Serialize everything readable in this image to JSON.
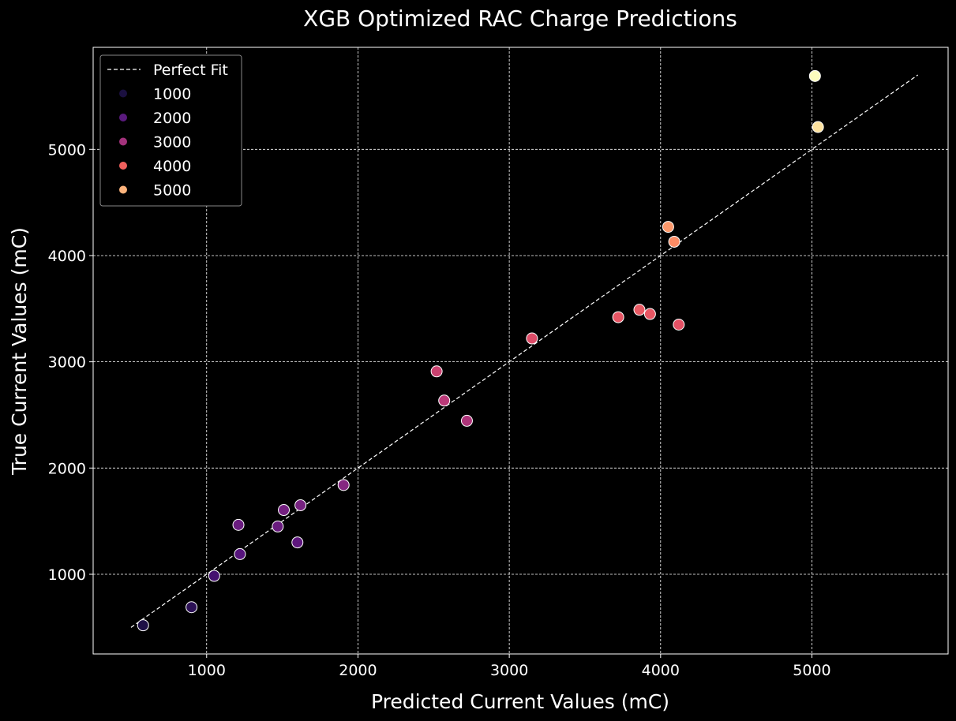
{
  "chart_data": {
    "type": "scatter",
    "title": "XGB Optimized RAC Charge Predictions",
    "xlabel": "Predicted Current Values (mC)",
    "ylabel": "True Current Values (mC)",
    "xlim": [
      250,
      5900
    ],
    "ylim": [
      250,
      5960
    ],
    "x_ticks": [
      1000,
      2000,
      3000,
      4000,
      5000
    ],
    "y_ticks": [
      1000,
      2000,
      3000,
      4000,
      5000
    ],
    "x_tick_labels": [
      "1000",
      "2000",
      "3000",
      "4000",
      "5000"
    ],
    "y_tick_labels": [
      "1000",
      "2000",
      "3000",
      "4000",
      "5000"
    ],
    "grid": true,
    "background": "#000000",
    "reference_line": {
      "name": "Perfect Fit",
      "from": [
        500,
        500
      ],
      "to": [
        5700,
        5700
      ],
      "style": "dashed",
      "color": "#ffffff"
    },
    "legend": {
      "position": "top-left",
      "entries": [
        {
          "label": "Perfect Fit",
          "kind": "line"
        },
        {
          "label": "1000",
          "kind": "marker",
          "color": "#1b1040"
        },
        {
          "label": "2000",
          "kind": "marker",
          "color": "#5a1a7d"
        },
        {
          "label": "3000",
          "kind": "marker",
          "color": "#a3327c"
        },
        {
          "label": "4000",
          "kind": "marker",
          "color": "#f0605d"
        },
        {
          "label": "5000",
          "kind": "marker",
          "color": "#fdb37c"
        }
      ]
    },
    "hue_range": [
      500,
      5700
    ],
    "points": [
      {
        "x": 580,
        "y": 520,
        "hue": 520
      },
      {
        "x": 900,
        "y": 690,
        "hue": 690
      },
      {
        "x": 1050,
        "y": 985,
        "hue": 985
      },
      {
        "x": 1220,
        "y": 1190,
        "hue": 1190
      },
      {
        "x": 1210,
        "y": 1465,
        "hue": 1465
      },
      {
        "x": 1470,
        "y": 1450,
        "hue": 1450
      },
      {
        "x": 1510,
        "y": 1605,
        "hue": 1605
      },
      {
        "x": 1600,
        "y": 1300,
        "hue": 1300
      },
      {
        "x": 1620,
        "y": 1650,
        "hue": 1650
      },
      {
        "x": 1905,
        "y": 1840,
        "hue": 1840
      },
      {
        "x": 2520,
        "y": 2910,
        "hue": 2910
      },
      {
        "x": 2570,
        "y": 2635,
        "hue": 2635
      },
      {
        "x": 2720,
        "y": 2445,
        "hue": 2445
      },
      {
        "x": 3150,
        "y": 3220,
        "hue": 3220
      },
      {
        "x": 3720,
        "y": 3420,
        "hue": 3420
      },
      {
        "x": 3860,
        "y": 3490,
        "hue": 3490
      },
      {
        "x": 3930,
        "y": 3450,
        "hue": 3450
      },
      {
        "x": 4120,
        "y": 3350,
        "hue": 3350
      },
      {
        "x": 4050,
        "y": 4270,
        "hue": 4270
      },
      {
        "x": 4090,
        "y": 4130,
        "hue": 4130
      },
      {
        "x": 5020,
        "y": 5690,
        "hue": 5690
      },
      {
        "x": 5040,
        "y": 5210,
        "hue": 5210
      }
    ]
  }
}
